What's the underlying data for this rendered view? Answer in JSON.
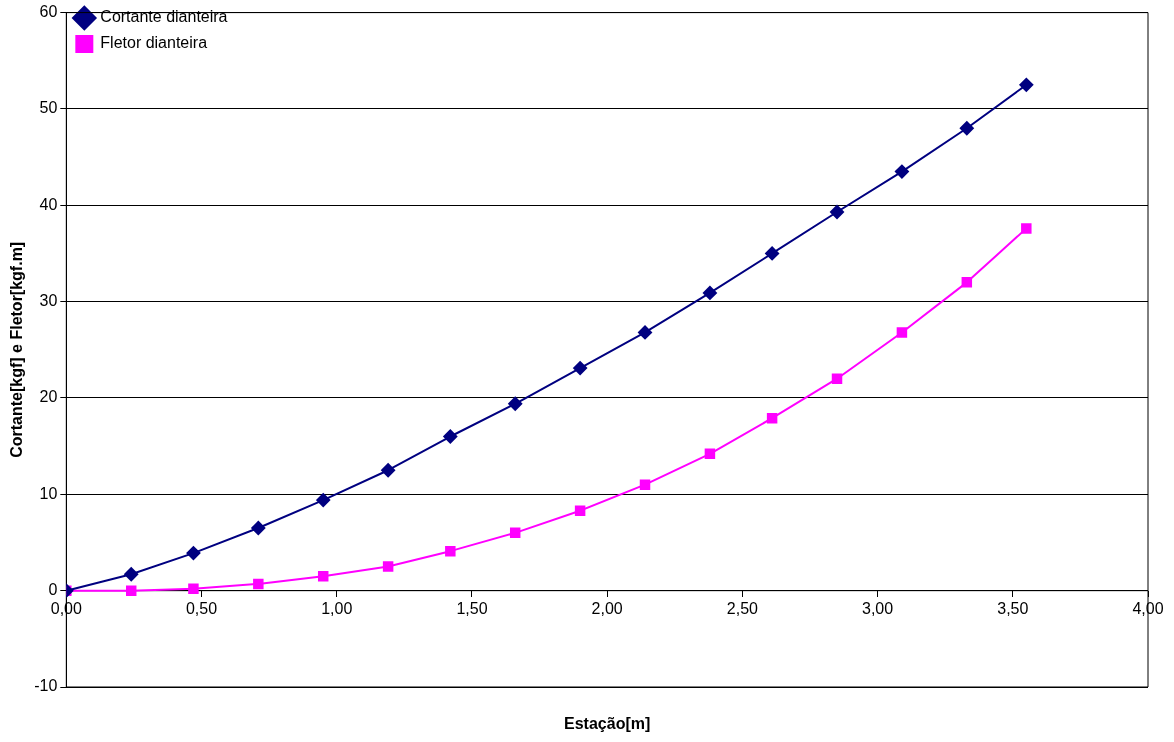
{
  "chart_data": {
    "type": "line",
    "xlabel": "Estação[m]",
    "ylabel": "Cortante[kgf] e Fletor[kgf.m]",
    "x": [
      0,
      0.24,
      0.47,
      0.71,
      0.95,
      1.19,
      1.42,
      1.66,
      1.9,
      2.14,
      2.38,
      2.61,
      2.85,
      3.09,
      3.33,
      3.55
    ],
    "series": [
      {
        "name": "Cortante dianteira",
        "color": "#000080",
        "marker": "diamond",
        "values": [
          0,
          1.7,
          3.9,
          6.5,
          9.4,
          12.5,
          16.0,
          19.4,
          23.1,
          26.8,
          30.9,
          35.0,
          39.3,
          43.5,
          48.0,
          52.5
        ]
      },
      {
        "name": "Fletor dianteira",
        "color": "#ff00ff",
        "marker": "square",
        "values": [
          0,
          0,
          0.2,
          0.7,
          1.5,
          2.5,
          4.1,
          6.0,
          8.3,
          11.0,
          14.2,
          17.9,
          22.0,
          26.8,
          32.0,
          37.6
        ]
      }
    ],
    "xlim": [
      0,
      4
    ],
    "xticks": [
      {
        "value": 0,
        "label": "0,00"
      },
      {
        "value": 0.5,
        "label": "0,50"
      },
      {
        "value": 1,
        "label": "1,00"
      },
      {
        "value": 1.5,
        "label": "1,50"
      },
      {
        "value": 2,
        "label": "2,00"
      },
      {
        "value": 2.5,
        "label": "2,50"
      },
      {
        "value": 3,
        "label": "3,00"
      },
      {
        "value": 3.5,
        "label": "3,50"
      },
      {
        "value": 4,
        "label": "4,00"
      }
    ],
    "ylim": [
      -10,
      60
    ],
    "yticks": [
      -10,
      0,
      10,
      20,
      30,
      40,
      50,
      60
    ],
    "grid": "y",
    "legend": "top left",
    "line_style": "solid"
  }
}
